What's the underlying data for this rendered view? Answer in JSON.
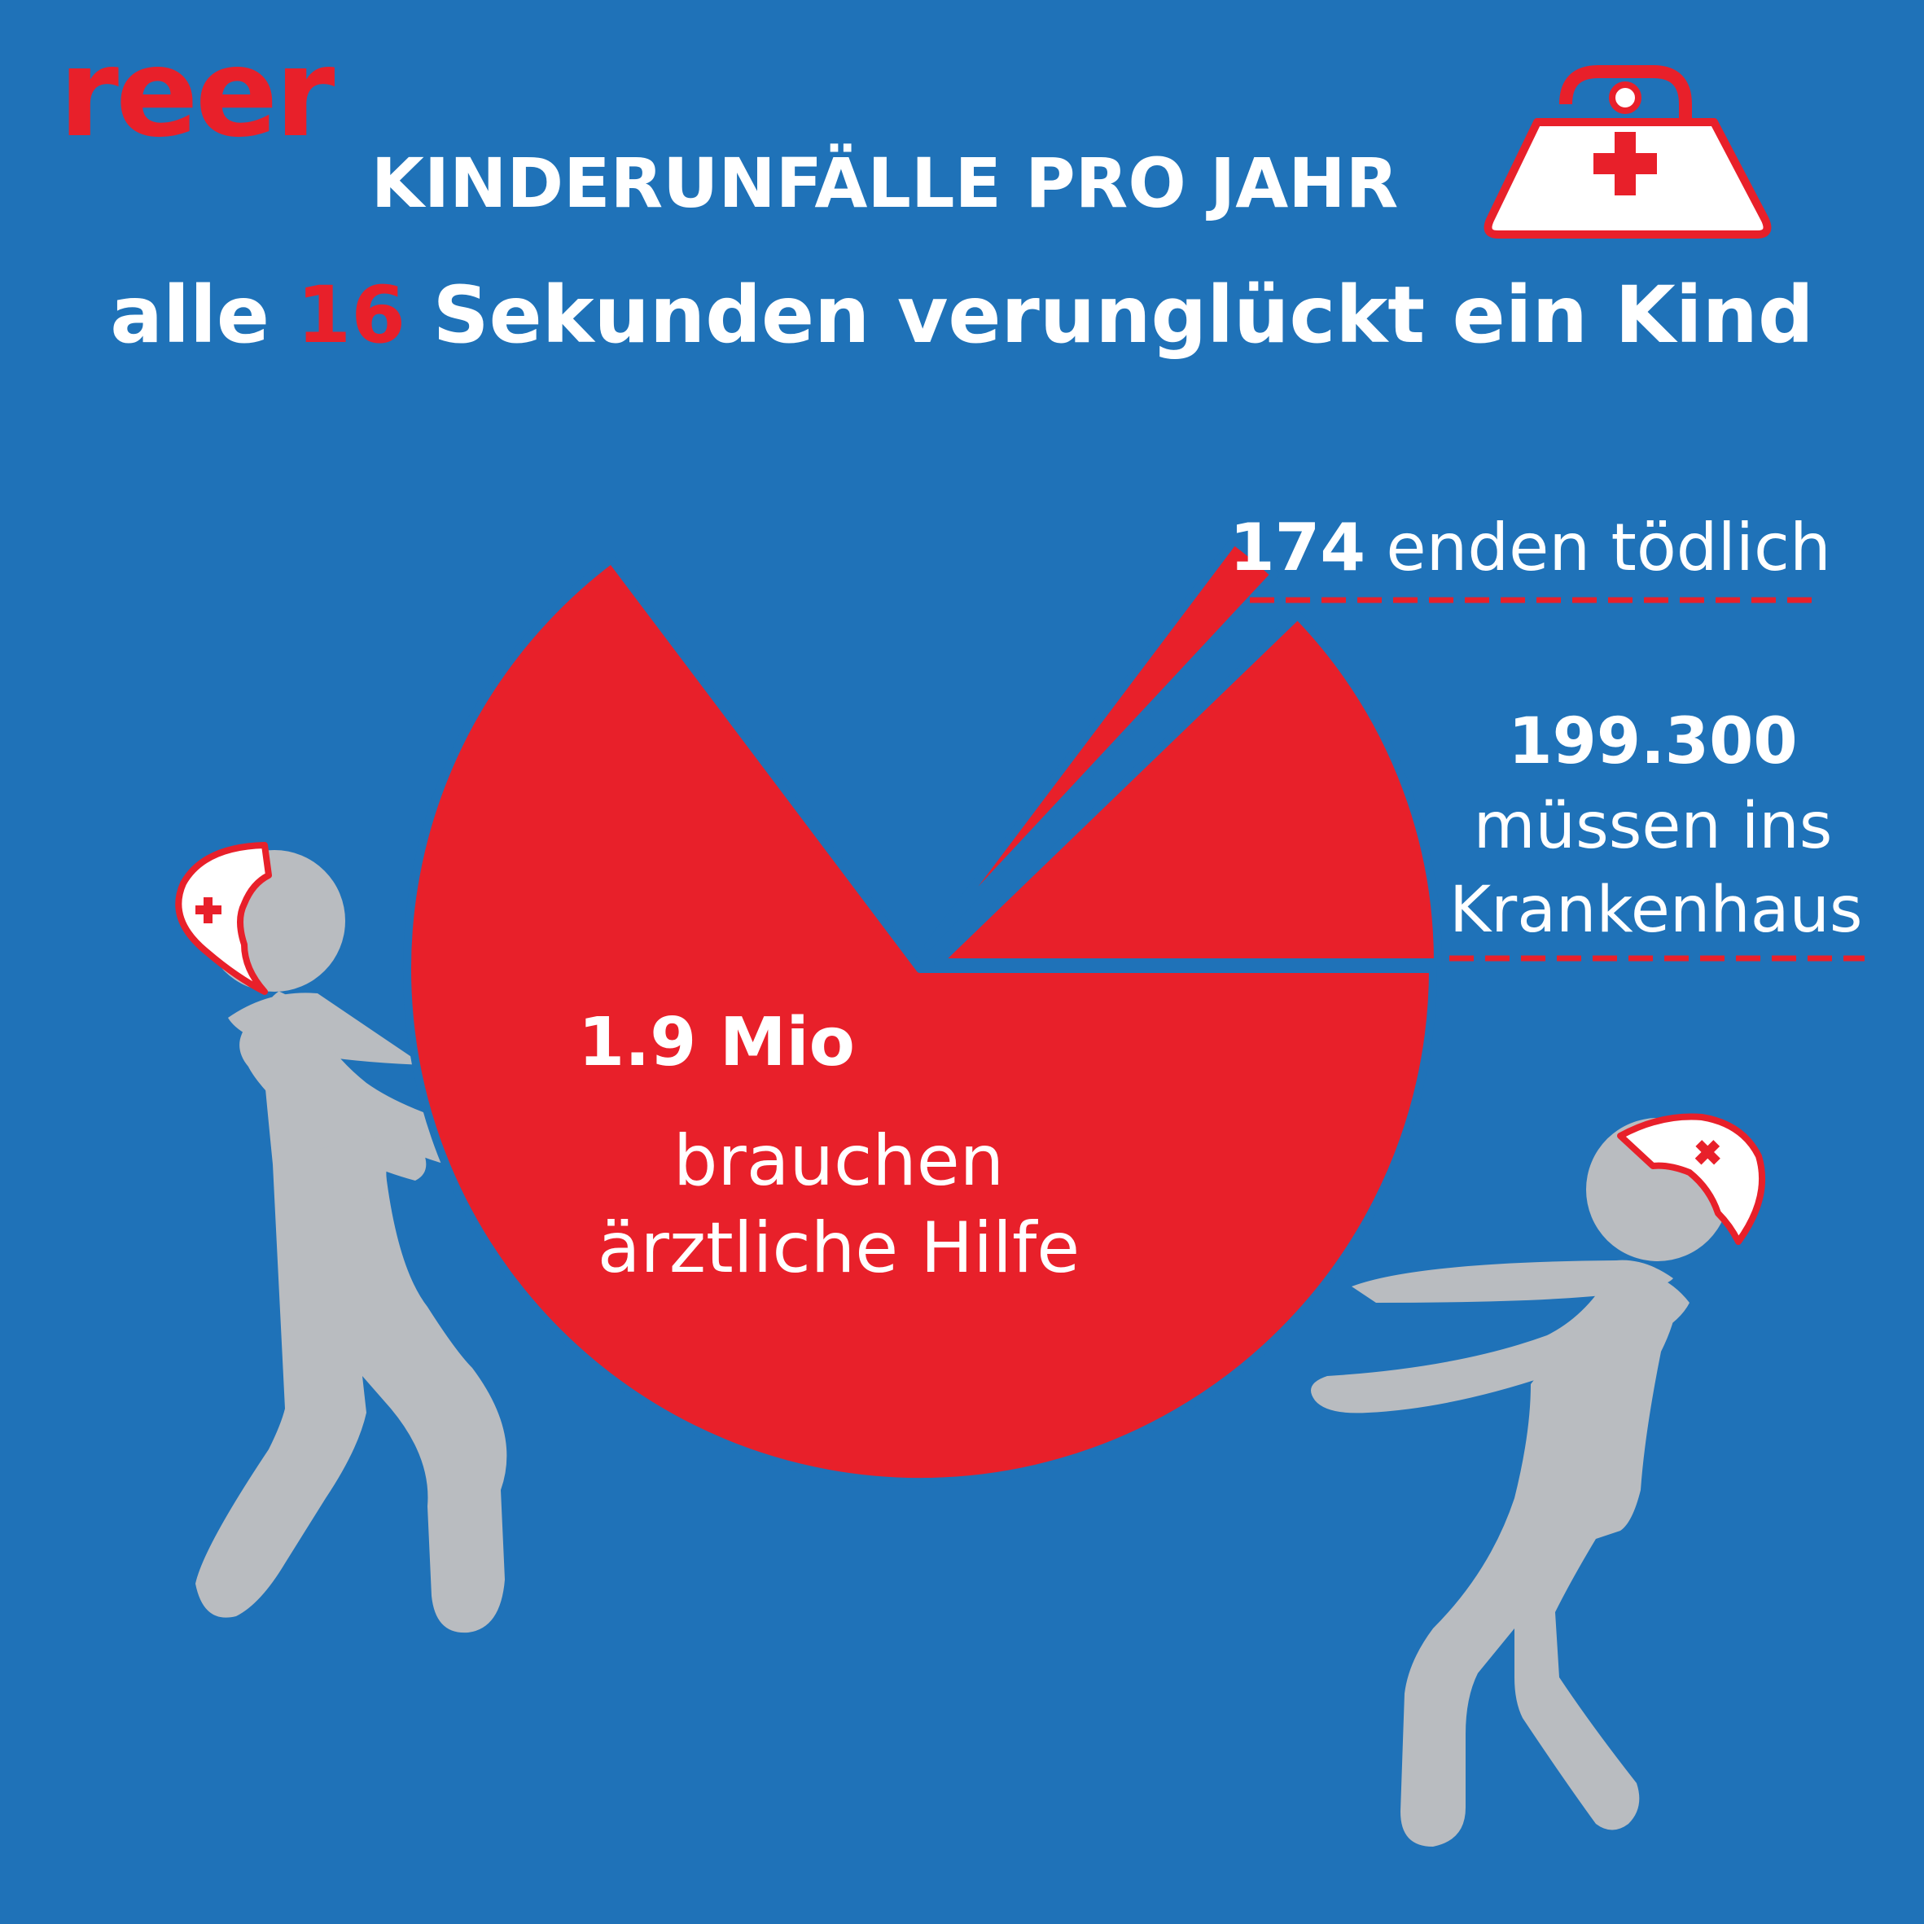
{
  "brand": {
    "logo": "reer",
    "brand_color": "#e8202a",
    "background": "#1f72b8"
  },
  "header": {
    "title": "KINDERUNFÄLLE PRO JAHR",
    "subtitle_pre": "alle ",
    "subtitle_num": "16",
    "subtitle_post": " Sekunden verunglückt ein Kind"
  },
  "icons": [
    "first-aid-kit-icon",
    "rescuer-figure-icon",
    "rescuer-figure-icon"
  ],
  "chart_data": {
    "type": "pie",
    "title": "KINDERUNFÄLLE PRO JAHR",
    "slices": [
      {
        "value_label": "174",
        "text": "enden tödlich",
        "value": 174,
        "color": "#e8202a",
        "exploded": true
      },
      {
        "value_label": "199.300",
        "text": "müssen ins Krankenhaus",
        "value": 199300,
        "color": "#e8202a",
        "exploded": true
      },
      {
        "value_label": "1.9 Mio",
        "text": "brauchen ärztliche Hilfe",
        "value": 1900000,
        "color": "#e8202a",
        "exploded": false
      }
    ],
    "labels": {
      "dead_num": "174",
      "dead_text": " enden tödlich",
      "hosp_num": "199.300",
      "hosp_line1": "müssen ins",
      "hosp_line2": "Krankenhaus",
      "doc_num": "1.9 Mio",
      "doc_line1": "brauchen",
      "doc_line2": "ärztliche Hilfe"
    },
    "leader_color": "#e8202a",
    "leader_style": "dashed"
  }
}
